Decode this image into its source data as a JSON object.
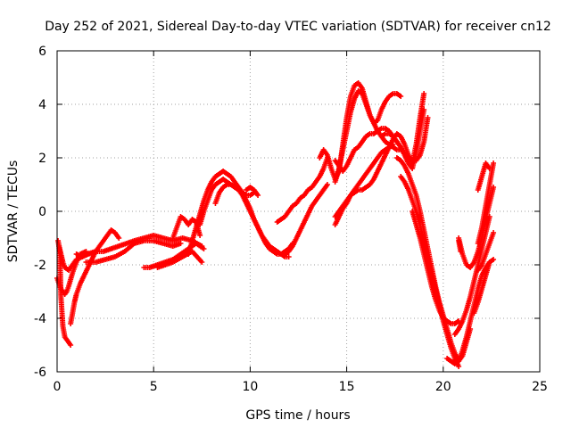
{
  "chart_data": {
    "type": "scatter",
    "title": "Day 252 of 2021, Sidereal Day-to-day VTEC variation (SDTVAR) for receiver cn12",
    "xlabel": "GPS time / hours",
    "ylabel": "SDTVAR / TECUs",
    "xlim": [
      0,
      25
    ],
    "ylim": [
      -6,
      6
    ],
    "xticks": [
      "0",
      "5",
      "10",
      "15",
      "20",
      "25"
    ],
    "yticks": [
      "-6",
      "-4",
      "-2",
      "0",
      "2",
      "4",
      "6"
    ],
    "grid": true,
    "marker": "+",
    "color": "#ff0000",
    "series": [
      {
        "x": [
          0.1,
          0.15,
          0.2,
          0.3,
          0.4,
          0.5,
          0.6,
          0.7
        ],
        "y": [
          -1.3,
          -1.8,
          -3.2,
          -4.3,
          -4.7,
          -4.8,
          -4.9,
          -5.0
        ]
      },
      {
        "x": [
          0.0,
          0.1,
          0.2,
          0.3,
          0.4,
          0.5,
          0.6,
          0.8,
          1.0,
          1.2,
          1.5
        ],
        "y": [
          -2.5,
          -2.7,
          -2.9,
          -3.0,
          -3.1,
          -3.0,
          -2.8,
          -2.3,
          -1.9,
          -1.6,
          -1.5
        ]
      },
      {
        "x": [
          0.7,
          0.8,
          0.9,
          1.0,
          1.1,
          1.2,
          1.4,
          1.6,
          1.8,
          2.0,
          2.3,
          2.6,
          2.8,
          3.0,
          3.2
        ],
        "y": [
          -4.2,
          -3.8,
          -3.4,
          -3.1,
          -2.9,
          -2.7,
          -2.4,
          -2.1,
          -1.8,
          -1.5,
          -1.2,
          -0.9,
          -0.7,
          -0.8,
          -1.0
        ]
      },
      {
        "x": [
          0.05,
          0.1,
          0.2,
          0.3,
          0.4,
          0.6,
          0.8,
          1.0,
          1.3,
          1.6,
          2.0
        ],
        "y": [
          -1.1,
          -1.3,
          -1.6,
          -1.9,
          -2.1,
          -2.2,
          -2.0,
          -1.8,
          -1.7,
          -1.6,
          -1.5
        ]
      },
      {
        "x": [
          1.0,
          1.3,
          1.6,
          2.0,
          2.4,
          2.8,
          3.2,
          3.6,
          4.0,
          4.5,
          5.0,
          5.5,
          6.0,
          6.5,
          7.0,
          7.5
        ],
        "y": [
          -1.6,
          -1.7,
          -1.6,
          -1.5,
          -1.5,
          -1.4,
          -1.3,
          -1.2,
          -1.1,
          -1.0,
          -0.9,
          -1.0,
          -1.1,
          -1.0,
          -1.1,
          -1.3
        ]
      },
      {
        "x": [
          1.5,
          2.0,
          2.5,
          3.0,
          3.5,
          4.0,
          4.5,
          5.0,
          5.5,
          6.0,
          6.4
        ],
        "y": [
          -1.9,
          -1.9,
          -1.8,
          -1.7,
          -1.5,
          -1.2,
          -1.1,
          -1.1,
          -1.2,
          -1.3,
          -1.2
        ]
      },
      {
        "x": [
          4.5,
          4.8,
          5.2,
          5.6,
          6.0,
          6.4,
          6.8,
          7.2,
          7.6
        ],
        "y": [
          -2.1,
          -2.1,
          -2.0,
          -1.9,
          -1.8,
          -1.6,
          -1.4,
          -1.2,
          -1.4
        ]
      },
      {
        "x": [
          5.2,
          5.6,
          6.0,
          6.5,
          7.0,
          7.5
        ],
        "y": [
          -2.1,
          -2.0,
          -1.9,
          -1.7,
          -1.5,
          -1.9
        ]
      },
      {
        "x": [
          6.0,
          6.2,
          6.4,
          6.6,
          6.8,
          7.0,
          7.2,
          7.4
        ],
        "y": [
          -1.0,
          -0.6,
          -0.2,
          -0.3,
          -0.5,
          -0.3,
          -0.4,
          -0.9
        ]
      },
      {
        "x": [
          6.8,
          7.0,
          7.2,
          7.4,
          7.6,
          7.8,
          8.0,
          8.2,
          8.4,
          8.6,
          8.8,
          9.0,
          9.2,
          9.4,
          9.6,
          9.8,
          10.0,
          10.2,
          10.4,
          10.6,
          10.8,
          11.0,
          11.2,
          11.4,
          11.6,
          11.8,
          12.0,
          12.2
        ],
        "y": [
          -1.6,
          -1.1,
          -0.6,
          -0.1,
          0.4,
          0.8,
          1.1,
          1.3,
          1.4,
          1.5,
          1.4,
          1.3,
          1.1,
          0.9,
          0.7,
          0.4,
          0.1,
          -0.3,
          -0.6,
          -0.9,
          -1.2,
          -1.4,
          -1.5,
          -1.6,
          -1.6,
          -1.5,
          -1.4,
          -1.2
        ]
      },
      {
        "x": [
          7.4,
          7.6,
          7.8,
          8.0,
          8.2,
          8.4,
          8.6,
          8.8,
          9.0,
          9.2,
          9.4,
          9.6,
          9.8,
          10.0,
          10.2
        ],
        "y": [
          -0.5,
          0.0,
          0.4,
          0.8,
          1.0,
          1.1,
          1.2,
          1.1,
          1.0,
          0.9,
          0.8,
          0.7,
          0.6,
          0.6,
          0.7
        ]
      },
      {
        "x": [
          8.2,
          8.4,
          8.6,
          8.8,
          9.0,
          9.2,
          9.4,
          9.6,
          9.8,
          10.0,
          10.2,
          10.4,
          10.6,
          10.8,
          11.0,
          11.2,
          11.4,
          11.6,
          11.8,
          12.0
        ],
        "y": [
          0.3,
          0.7,
          0.9,
          1.0,
          1.0,
          0.9,
          0.8,
          0.6,
          0.3,
          0.0,
          -0.3,
          -0.6,
          -0.9,
          -1.1,
          -1.3,
          -1.4,
          -1.5,
          -1.6,
          -1.7,
          -1.7
        ]
      },
      {
        "x": [
          9.8,
          10.0,
          10.2,
          10.4
        ],
        "y": [
          0.8,
          0.9,
          0.8,
          0.6
        ]
      },
      {
        "x": [
          11.4,
          11.6,
          11.8,
          12.0,
          12.2,
          12.4,
          12.6,
          12.8,
          13.0,
          13.2,
          13.4,
          13.6,
          13.8,
          14.0
        ],
        "y": [
          -0.4,
          -0.3,
          -0.2,
          0.0,
          0.2,
          0.3,
          0.5,
          0.6,
          0.8,
          0.9,
          1.1,
          1.3,
          1.6,
          2.0
        ]
      },
      {
        "x": [
          11.8,
          12.0,
          12.2,
          12.4,
          12.6,
          12.8,
          13.0,
          13.2,
          13.4,
          13.6,
          13.8,
          14.0
        ],
        "y": [
          -1.6,
          -1.5,
          -1.3,
          -1.0,
          -0.7,
          -0.4,
          -0.1,
          0.2,
          0.4,
          0.6,
          0.8,
          1.0
        ]
      },
      {
        "x": [
          13.6,
          13.8,
          14.0,
          14.2,
          14.4,
          14.6,
          14.8,
          15.0,
          15.2,
          15.4,
          15.6,
          15.8,
          16.0,
          16.2,
          16.4,
          16.6,
          16.8,
          17.0,
          17.2,
          17.4,
          17.6,
          17.8
        ],
        "y": [
          2.0,
          2.3,
          2.1,
          1.6,
          1.2,
          1.5,
          2.5,
          3.5,
          4.3,
          4.7,
          4.8,
          4.6,
          4.1,
          3.6,
          3.3,
          3.4,
          3.8,
          4.1,
          4.3,
          4.4,
          4.4,
          4.3
        ]
      },
      {
        "x": [
          14.4,
          14.6,
          14.8,
          15.0,
          15.2,
          15.4,
          15.6,
          15.8,
          16.0,
          16.2,
          16.4,
          16.6,
          16.8,
          17.0,
          17.2,
          17.4,
          17.6,
          17.8,
          18.0,
          18.2,
          18.4,
          18.6,
          18.8,
          19.0,
          19.2
        ],
        "y": [
          1.1,
          1.6,
          2.3,
          3.0,
          3.7,
          4.2,
          4.5,
          4.4,
          4.0,
          3.6,
          3.3,
          3.0,
          2.8,
          2.6,
          2.5,
          2.4,
          2.3,
          2.3,
          2.2,
          2.0,
          1.9,
          1.9,
          2.1,
          2.6,
          3.5
        ]
      },
      {
        "x": [
          14.4,
          14.6,
          14.8,
          15.0,
          15.2,
          15.4,
          15.6,
          15.8,
          16.0,
          16.2,
          16.4,
          16.6,
          16.8,
          17.0,
          17.2,
          17.4,
          17.6
        ],
        "y": [
          1.9,
          1.7,
          1.5,
          1.7,
          2.0,
          2.3,
          2.4,
          2.6,
          2.8,
          2.9,
          2.9,
          3.0,
          3.1,
          3.1,
          3.0,
          2.8,
          2.6
        ]
      },
      {
        "x": [
          14.4,
          14.6,
          14.8,
          15.0,
          15.2,
          15.4,
          15.6,
          15.8,
          16.0,
          16.2,
          16.4,
          16.6,
          16.8,
          17.0,
          17.2,
          17.4
        ],
        "y": [
          -0.5,
          -0.2,
          0.1,
          0.3,
          0.6,
          0.8,
          1.0,
          1.2,
          1.4,
          1.6,
          1.8,
          2.0,
          2.2,
          2.3,
          2.4,
          2.5
        ]
      },
      {
        "x": [
          14.4,
          14.6,
          14.8,
          15.0,
          15.2,
          15.4,
          15.6,
          15.8,
          16.0,
          16.2,
          16.4,
          16.6,
          16.8,
          17.0,
          17.2,
          17.4,
          17.6,
          17.8,
          18.0,
          18.2,
          18.4,
          18.6,
          18.8,
          19.0
        ],
        "y": [
          -0.2,
          0.0,
          0.2,
          0.4,
          0.6,
          0.7,
          0.8,
          0.8,
          0.9,
          1.0,
          1.2,
          1.5,
          1.8,
          2.1,
          2.4,
          2.7,
          2.9,
          2.8,
          2.5,
          2.1,
          1.8,
          2.5,
          3.5,
          4.4
        ]
      },
      {
        "x": [
          16.8,
          17.0,
          17.2,
          17.4,
          17.6,
          17.8,
          18.0,
          18.2,
          18.4,
          18.6,
          18.8,
          19.0
        ],
        "y": [
          2.8,
          2.9,
          2.9,
          2.8,
          2.6,
          2.4,
          2.1,
          1.8,
          1.6,
          2.2,
          3.0,
          3.8
        ]
      },
      {
        "x": [
          17.6,
          17.8,
          18.0,
          18.2,
          18.4,
          18.6,
          18.8,
          19.0,
          19.2,
          19.4,
          19.6,
          19.8,
          20.0,
          20.2,
          20.4,
          20.6,
          20.8,
          21.0,
          21.2,
          21.4
        ],
        "y": [
          2.0,
          1.9,
          1.7,
          1.4,
          1.0,
          0.6,
          0.0,
          -0.7,
          -1.4,
          -2.1,
          -2.8,
          -3.4,
          -3.9,
          -4.4,
          -4.9,
          -5.3,
          -5.6,
          -5.4,
          -4.9,
          -4.4
        ]
      },
      {
        "x": [
          17.8,
          18.0,
          18.2,
          18.4,
          18.6,
          18.8,
          19.0,
          19.2,
          19.4,
          19.6,
          19.8,
          20.0,
          20.2,
          20.4,
          20.6,
          20.8
        ],
        "y": [
          1.3,
          1.1,
          0.8,
          0.4,
          0.0,
          -0.5,
          -1.1,
          -1.7,
          -2.3,
          -2.9,
          -3.5,
          -4.1,
          -4.6,
          -5.1,
          -5.5,
          -5.8
        ]
      },
      {
        "x": [
          18.4,
          18.6,
          18.8,
          19.0,
          19.2,
          19.4,
          19.6,
          19.8,
          20.0,
          20.2,
          20.4,
          20.6,
          20.8
        ],
        "y": [
          0.0,
          -0.5,
          -1.0,
          -1.6,
          -2.2,
          -2.8,
          -3.3,
          -3.7,
          -4.0,
          -4.1,
          -4.2,
          -4.2,
          -4.1
        ]
      },
      {
        "x": [
          20.2,
          20.4,
          20.6,
          20.8,
          21.0,
          21.2,
          21.4,
          21.6,
          21.8,
          22.0,
          22.2,
          22.4,
          22.6
        ],
        "y": [
          -5.5,
          -5.6,
          -5.7,
          -5.6,
          -5.2,
          -4.7,
          -4.1,
          -3.5,
          -2.9,
          -2.4,
          -2.1,
          -1.9,
          -1.8
        ]
      },
      {
        "x": [
          20.6,
          20.8,
          21.0,
          21.2,
          21.4,
          21.6,
          21.8,
          22.0,
          22.2,
          22.4
        ],
        "y": [
          -4.6,
          -4.4,
          -4.1,
          -3.7,
          -3.2,
          -2.6,
          -2.0,
          -1.4,
          -0.8,
          -0.2
        ]
      },
      {
        "x": [
          20.8,
          21.0,
          21.2,
          21.4,
          21.6,
          21.8,
          22.0,
          22.2,
          22.4,
          22.6
        ],
        "y": [
          -1.0,
          -1.6,
          -2.0,
          -2.1,
          -1.9,
          -1.5,
          -1.0,
          -0.3,
          0.3,
          0.9
        ]
      },
      {
        "x": [
          21.8,
          22.0,
          22.2,
          22.4,
          22.6
        ],
        "y": [
          -1.2,
          -0.6,
          0.2,
          1.0,
          1.8
        ]
      },
      {
        "x": [
          21.8,
          22.0,
          22.2,
          22.4,
          22.6
        ],
        "y": [
          -2.2,
          -2.0,
          -1.6,
          -1.2,
          -0.8
        ]
      },
      {
        "x": [
          21.6,
          21.8,
          22.0,
          22.2,
          22.4
        ],
        "y": [
          -3.8,
          -3.4,
          -2.9,
          -2.4,
          -1.9
        ]
      },
      {
        "x": [
          20.8,
          20.9
        ],
        "y": [
          -1.1,
          -1.5
        ]
      },
      {
        "x": [
          21.8,
          22.0,
          22.2,
          22.4
        ],
        "y": [
          0.8,
          1.3,
          1.8,
          1.6
        ]
      }
    ]
  }
}
